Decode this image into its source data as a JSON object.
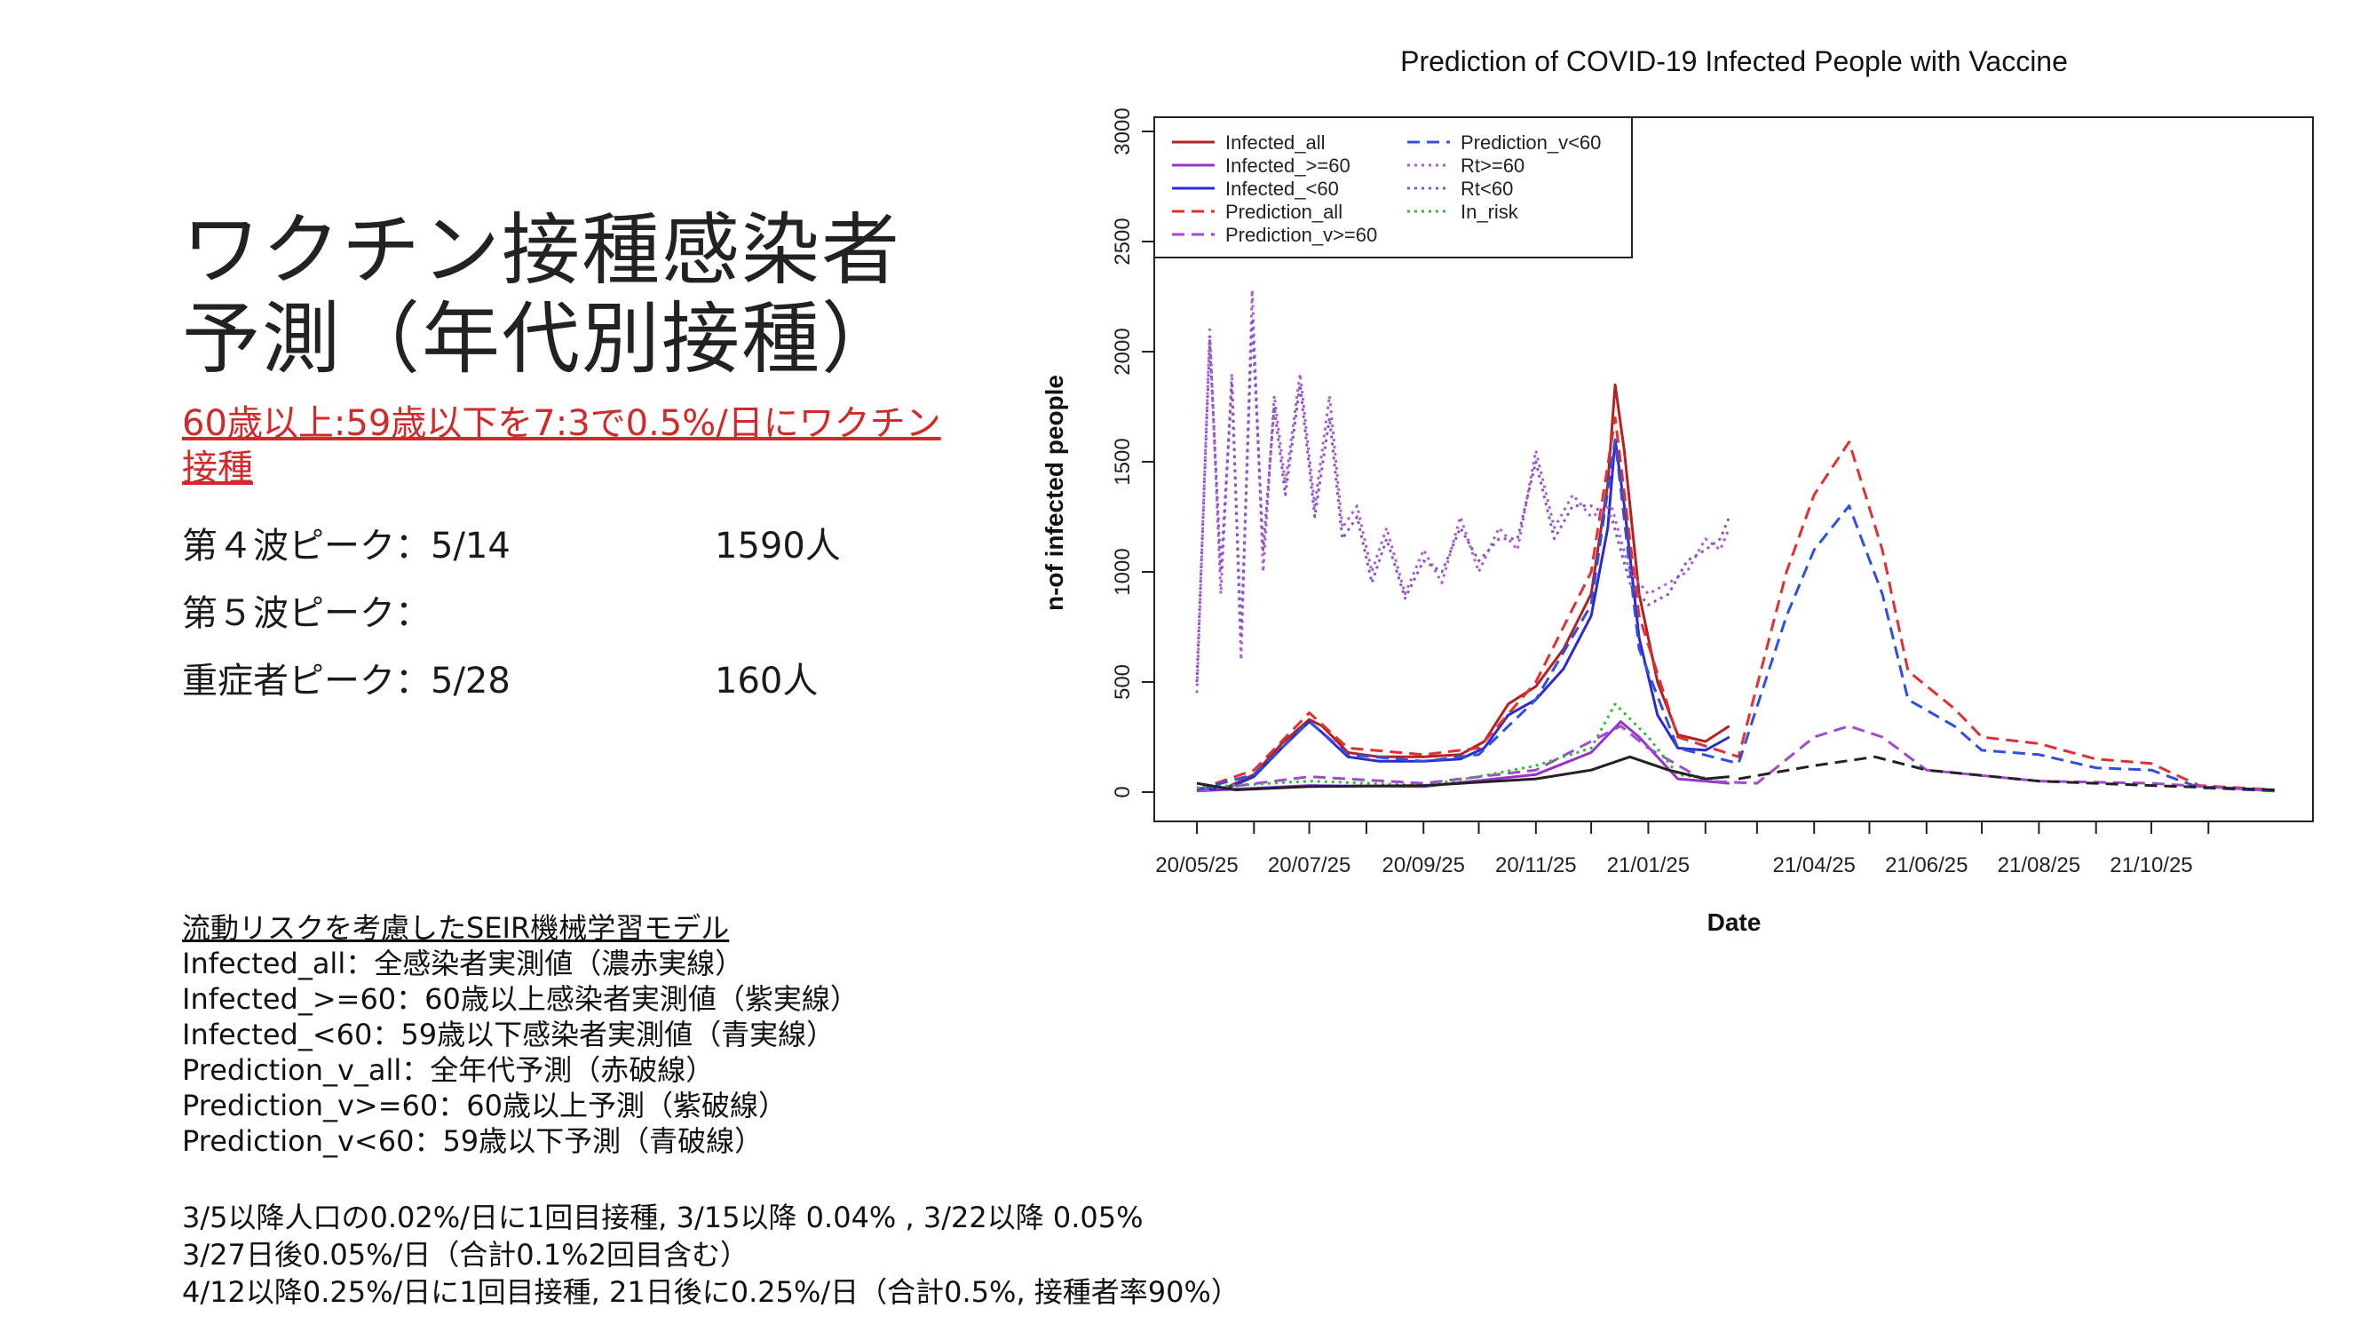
{
  "slide": {
    "title": "ワクチン接種感染者\n予測（年代別接種）",
    "subtitle": "60歳以上:59歳以下を7:3で0.5%/日にワクチン接種",
    "peaks": [
      {
        "label": "第４波ピーク：5/14",
        "value": "1590人"
      },
      {
        "label": "第５波ピーク：",
        "value": ""
      },
      {
        "label": "重症者ピーク：5/28",
        "value": "160人"
      }
    ],
    "notes_heading": "流動リスクを考慮したSEIR機械学習モデル",
    "notes": [
      "Infected_all：全感染者実測値（濃赤実線）",
      "Infected_>=60：60歳以上感染者実測値（紫実線）",
      "Infected_<60：59歳以下感染者実測値（青実線）",
      "Prediction_v_all：全年代予測（赤破線）",
      "Prediction_v>=60：60歳以上予測（紫破線）",
      "Prediction_v<60：59歳以下予測（青破線）"
    ],
    "vaccination": [
      "3/5以降人口の0.02%/日に1回目接種, 3/15以降 0.04% , 3/22以降 0.05%",
      "3/27日後0.05%/日（合計0.1%2回目含む）",
      "4/12以降0.25%/日に1回目接種, 21日後に0.25%/日（合計0.5%, 接種者率90%）"
    ]
  },
  "chart_data": {
    "type": "line",
    "title": "Prediction of COVID-19 Infected People with Vaccine",
    "xlabel": "Date",
    "ylabel": "n-of infected people",
    "ylim": [
      0,
      3000
    ],
    "yticks": [
      0,
      500,
      1000,
      1500,
      2000,
      2500,
      3000
    ],
    "xlim": [
      "2020-05-25",
      "2021-12-31"
    ],
    "xticks": [
      "20/05/25",
      "20/07/25",
      "20/09/25",
      "20/11/25",
      "21/01/25",
      "21/04/25",
      "21/06/25",
      "21/08/25",
      "21/10/25"
    ],
    "xtick_dates": [
      "2020-05-25",
      "2020-07-25",
      "2020-09-25",
      "2020-11-25",
      "2021-01-25",
      "2021-04-25",
      "2021-06-25",
      "2021-08-25",
      "2021-10-25"
    ],
    "legend_position": "top-left",
    "legend": [
      [
        "Infected_all",
        "Prediction_v<60"
      ],
      [
        "Infected_>=60",
        "Rt>=60"
      ],
      [
        "Infected_<60",
        "Rt<60"
      ],
      [
        "Prediction_all",
        "In_risk"
      ],
      [
        "Prediction_v>=60",
        ""
      ]
    ],
    "series": [
      {
        "name": "Infected_all",
        "color": "#b22222",
        "dash": "solid",
        "points": [
          [
            "2020-05-25",
            15
          ],
          [
            "2020-06-10",
            20
          ],
          [
            "2020-06-25",
            80
          ],
          [
            "2020-07-10",
            220
          ],
          [
            "2020-07-25",
            330
          ],
          [
            "2020-08-01",
            300
          ],
          [
            "2020-08-15",
            180
          ],
          [
            "2020-09-01",
            160
          ],
          [
            "2020-09-25",
            160
          ],
          [
            "2020-10-15",
            170
          ],
          [
            "2020-10-28",
            230
          ],
          [
            "2020-11-10",
            400
          ],
          [
            "2020-11-25",
            480
          ],
          [
            "2020-12-10",
            650
          ],
          [
            "2020-12-25",
            900
          ],
          [
            "2021-01-03",
            1400
          ],
          [
            "2021-01-07",
            1850
          ],
          [
            "2021-01-12",
            1550
          ],
          [
            "2021-01-20",
            900
          ],
          [
            "2021-01-30",
            500
          ],
          [
            "2021-02-10",
            260
          ],
          [
            "2021-02-25",
            230
          ],
          [
            "2021-03-10",
            300
          ]
        ]
      },
      {
        "name": "Infected_>=60",
        "color": "#9932cc",
        "dash": "solid",
        "points": [
          [
            "2020-05-25",
            5
          ],
          [
            "2020-07-25",
            30
          ],
          [
            "2020-09-25",
            25
          ],
          [
            "2020-11-25",
            80
          ],
          [
            "2020-12-25",
            180
          ],
          [
            "2021-01-10",
            320
          ],
          [
            "2021-01-20",
            250
          ],
          [
            "2021-02-10",
            60
          ],
          [
            "2021-03-10",
            40
          ]
        ]
      },
      {
        "name": "Infected_<60",
        "color": "#2b2bd1",
        "dash": "solid",
        "points": [
          [
            "2020-05-25",
            10
          ],
          [
            "2020-06-10",
            15
          ],
          [
            "2020-06-25",
            70
          ],
          [
            "2020-07-10",
            200
          ],
          [
            "2020-07-25",
            320
          ],
          [
            "2020-08-01",
            270
          ],
          [
            "2020-08-15",
            160
          ],
          [
            "2020-09-01",
            140
          ],
          [
            "2020-09-25",
            140
          ],
          [
            "2020-10-15",
            150
          ],
          [
            "2020-10-28",
            200
          ],
          [
            "2020-11-10",
            350
          ],
          [
            "2020-11-25",
            420
          ],
          [
            "2020-12-10",
            560
          ],
          [
            "2020-12-25",
            800
          ],
          [
            "2021-01-03",
            1200
          ],
          [
            "2021-01-07",
            1600
          ],
          [
            "2021-01-12",
            1300
          ],
          [
            "2021-01-20",
            700
          ],
          [
            "2021-01-30",
            350
          ],
          [
            "2021-02-10",
            200
          ],
          [
            "2021-02-25",
            190
          ],
          [
            "2021-03-10",
            250
          ]
        ]
      },
      {
        "name": "Prediction_all",
        "color": "#e03030",
        "dash": "dashed",
        "points": [
          [
            "2020-05-25",
            10
          ],
          [
            "2020-06-25",
            100
          ],
          [
            "2020-07-25",
            360
          ],
          [
            "2020-08-15",
            200
          ],
          [
            "2020-09-25",
            170
          ],
          [
            "2020-10-25",
            200
          ],
          [
            "2020-11-25",
            500
          ],
          [
            "2020-12-25",
            1000
          ],
          [
            "2021-01-07",
            1700
          ],
          [
            "2021-01-20",
            800
          ],
          [
            "2021-02-10",
            250
          ],
          [
            "2021-03-15",
            160
          ],
          [
            "2021-04-10",
            1000
          ],
          [
            "2021-04-25",
            1350
          ],
          [
            "2021-05-14",
            1590
          ],
          [
            "2021-06-01",
            1100
          ],
          [
            "2021-06-15",
            550
          ],
          [
            "2021-07-10",
            380
          ],
          [
            "2021-07-25",
            250
          ],
          [
            "2021-08-25",
            220
          ],
          [
            "2021-09-25",
            150
          ],
          [
            "2021-10-25",
            130
          ],
          [
            "2021-11-20",
            30
          ],
          [
            "2021-12-31",
            10
          ]
        ]
      },
      {
        "name": "Prediction_v>=60",
        "color": "#a04ad0",
        "dash": "dashed",
        "points": [
          [
            "2020-05-25",
            5
          ],
          [
            "2020-07-25",
            70
          ],
          [
            "2020-09-25",
            40
          ],
          [
            "2020-11-25",
            100
          ],
          [
            "2021-01-10",
            300
          ],
          [
            "2021-01-25",
            200
          ],
          [
            "2021-02-25",
            50
          ],
          [
            "2021-03-25",
            40
          ],
          [
            "2021-04-25",
            250
          ],
          [
            "2021-05-14",
            300
          ],
          [
            "2021-06-01",
            250
          ],
          [
            "2021-06-25",
            100
          ],
          [
            "2021-08-25",
            50
          ],
          [
            "2021-10-25",
            40
          ],
          [
            "2021-12-31",
            5
          ]
        ]
      },
      {
        "name": "Prediction_v<60",
        "color": "#2e4fe0",
        "dash": "dashed",
        "points": [
          [
            "2020-05-25",
            10
          ],
          [
            "2020-06-25",
            80
          ],
          [
            "2020-07-25",
            320
          ],
          [
            "2020-08-15",
            170
          ],
          [
            "2020-09-25",
            140
          ],
          [
            "2020-10-25",
            170
          ],
          [
            "2020-11-25",
            420
          ],
          [
            "2020-12-25",
            850
          ],
          [
            "2021-01-07",
            1600
          ],
          [
            "2021-01-20",
            650
          ],
          [
            "2021-02-10",
            200
          ],
          [
            "2021-03-15",
            130
          ],
          [
            "2021-04-10",
            800
          ],
          [
            "2021-04-25",
            1100
          ],
          [
            "2021-05-14",
            1300
          ],
          [
            "2021-06-01",
            900
          ],
          [
            "2021-06-15",
            420
          ],
          [
            "2021-07-10",
            300
          ],
          [
            "2021-07-25",
            190
          ],
          [
            "2021-08-25",
            170
          ],
          [
            "2021-09-25",
            110
          ],
          [
            "2021-10-25",
            100
          ],
          [
            "2021-11-20",
            20
          ],
          [
            "2021-12-31",
            5
          ]
        ]
      },
      {
        "name": "Rt>=60",
        "color": "#b05ad8",
        "dash": "dotted",
        "points": [
          [
            "2020-05-25",
            450
          ],
          [
            "2020-06-01",
            2100
          ],
          [
            "2020-06-07",
            900
          ],
          [
            "2020-06-13",
            1900
          ],
          [
            "2020-06-18",
            600
          ],
          [
            "2020-06-24",
            2280
          ],
          [
            "2020-06-30",
            1000
          ],
          [
            "2020-07-06",
            1800
          ],
          [
            "2020-07-12",
            1400
          ],
          [
            "2020-07-20",
            1900
          ],
          [
            "2020-07-28",
            1300
          ],
          [
            "2020-08-05",
            1800
          ],
          [
            "2020-08-12",
            1200
          ],
          [
            "2020-08-20",
            1300
          ],
          [
            "2020-08-28",
            1000
          ],
          [
            "2020-09-05",
            1200
          ],
          [
            "2020-09-15",
            900
          ],
          [
            "2020-09-25",
            1100
          ],
          [
            "2020-10-05",
            950
          ],
          [
            "2020-10-15",
            1250
          ],
          [
            "2020-10-25",
            1000
          ],
          [
            "2020-11-05",
            1200
          ],
          [
            "2020-11-15",
            1100
          ],
          [
            "2020-11-25",
            1550
          ],
          [
            "2020-12-05",
            1200
          ],
          [
            "2020-12-15",
            1350
          ],
          [
            "2020-12-25",
            1250
          ],
          [
            "2021-01-05",
            1300
          ],
          [
            "2021-01-15",
            1000
          ],
          [
            "2021-01-25",
            900
          ],
          [
            "2021-02-05",
            950
          ],
          [
            "2021-02-15",
            1000
          ],
          [
            "2021-02-25",
            1150
          ],
          [
            "2021-03-05",
            1100
          ],
          [
            "2021-03-10",
            1200
          ]
        ]
      },
      {
        "name": "Rt<60",
        "color": "#8058c0",
        "dash": "dotted",
        "points": [
          [
            "2020-05-25",
            500
          ],
          [
            "2020-06-01",
            2050
          ],
          [
            "2020-06-07",
            1000
          ],
          [
            "2020-06-13",
            1850
          ],
          [
            "2020-06-18",
            700
          ],
          [
            "2020-06-24",
            2150
          ],
          [
            "2020-06-30",
            1100
          ],
          [
            "2020-07-06",
            1750
          ],
          [
            "2020-07-12",
            1350
          ],
          [
            "2020-07-20",
            1850
          ],
          [
            "2020-07-28",
            1250
          ],
          [
            "2020-08-05",
            1700
          ],
          [
            "2020-08-12",
            1150
          ],
          [
            "2020-08-20",
            1250
          ],
          [
            "2020-08-28",
            950
          ],
          [
            "2020-09-05",
            1150
          ],
          [
            "2020-09-15",
            880
          ],
          [
            "2020-09-25",
            1050
          ],
          [
            "2020-10-05",
            1000
          ],
          [
            "2020-10-15",
            1200
          ],
          [
            "2020-10-25",
            1050
          ],
          [
            "2020-11-05",
            1150
          ],
          [
            "2020-11-15",
            1150
          ],
          [
            "2020-11-25",
            1500
          ],
          [
            "2020-12-05",
            1150
          ],
          [
            "2020-12-15",
            1300
          ],
          [
            "2020-12-25",
            1300
          ],
          [
            "2021-01-05",
            1250
          ],
          [
            "2021-01-15",
            950
          ],
          [
            "2021-01-25",
            850
          ],
          [
            "2021-02-05",
            900
          ],
          [
            "2021-02-15",
            1050
          ],
          [
            "2021-02-25",
            1100
          ],
          [
            "2021-03-05",
            1150
          ],
          [
            "2021-03-10",
            1250
          ]
        ]
      },
      {
        "name": "In_risk",
        "color": "#33bb33",
        "dash": "dotted",
        "points": [
          [
            "2020-05-25",
            20
          ],
          [
            "2020-07-25",
            50
          ],
          [
            "2020-09-25",
            30
          ],
          [
            "2020-10-25",
            70
          ],
          [
            "2020-11-25",
            120
          ],
          [
            "2020-12-25",
            200
          ],
          [
            "2021-01-07",
            400
          ],
          [
            "2021-01-25",
            250
          ],
          [
            "2021-02-10",
            80
          ],
          [
            "2021-03-01",
            60
          ]
        ]
      },
      {
        "name": "Severe",
        "color": "#222222",
        "dash": "solid",
        "points": [
          [
            "2020-05-25",
            40
          ],
          [
            "2020-06-15",
            10
          ],
          [
            "2020-07-25",
            25
          ],
          [
            "2020-09-25",
            30
          ],
          [
            "2020-11-25",
            60
          ],
          [
            "2020-12-25",
            100
          ],
          [
            "2021-01-15",
            160
          ],
          [
            "2021-02-05",
            100
          ],
          [
            "2021-02-25",
            60
          ],
          [
            "2021-03-10",
            70
          ]
        ]
      },
      {
        "name": "Severe_pred",
        "color": "#222222",
        "dash": "dashed",
        "points": [
          [
            "2021-03-15",
            60
          ],
          [
            "2021-04-25",
            120
          ],
          [
            "2021-05-28",
            160
          ],
          [
            "2021-06-25",
            100
          ],
          [
            "2021-08-25",
            50
          ],
          [
            "2021-10-25",
            30
          ],
          [
            "2021-12-31",
            10
          ]
        ]
      }
    ]
  }
}
